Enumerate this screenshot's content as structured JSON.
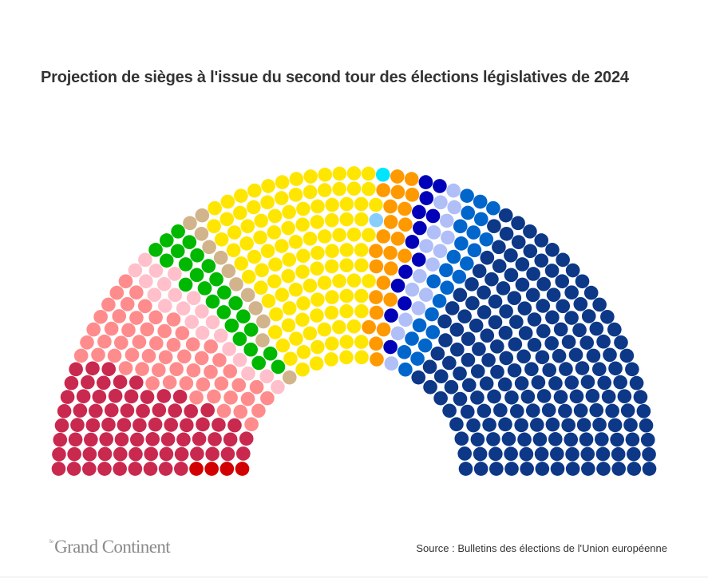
{
  "title": "Projection de sièges à l'issue du second tour des élections législatives de 2024",
  "source": "Source : Bulletins des élections de l'Union européenne",
  "logo": {
    "prefix": "le",
    "wordmark": "Grand Continent"
  },
  "chart_data": {
    "type": "parliament",
    "title": "Projection de sièges à l'issue du second tour des élections législatives de 2024",
    "total_seats": 577,
    "groups": [
      {
        "color": "#d20000",
        "seats": 4
      },
      {
        "color": "#c9294f",
        "seats": 73
      },
      {
        "color": "#ff8c8c",
        "seats": 57
      },
      {
        "color": "#ffc0cb",
        "seats": 21
      },
      {
        "color": "#00b800",
        "seats": 25
      },
      {
        "color": "#d2b48c",
        "seats": 12
      },
      {
        "color": "#ffe600",
        "seats": 112
      },
      {
        "color": "#87cefa",
        "seats": 1
      },
      {
        "color": "#00e5ff",
        "seats": 1
      },
      {
        "color": "#ff9900",
        "seats": 24
      },
      {
        "color": "#0000b8",
        "seats": 13
      },
      {
        "color": "#b0bff7",
        "seats": 16
      },
      {
        "color": "#0066cc",
        "seats": 25
      },
      {
        "color": "#0d3888",
        "seats": 193
      }
    ]
  }
}
